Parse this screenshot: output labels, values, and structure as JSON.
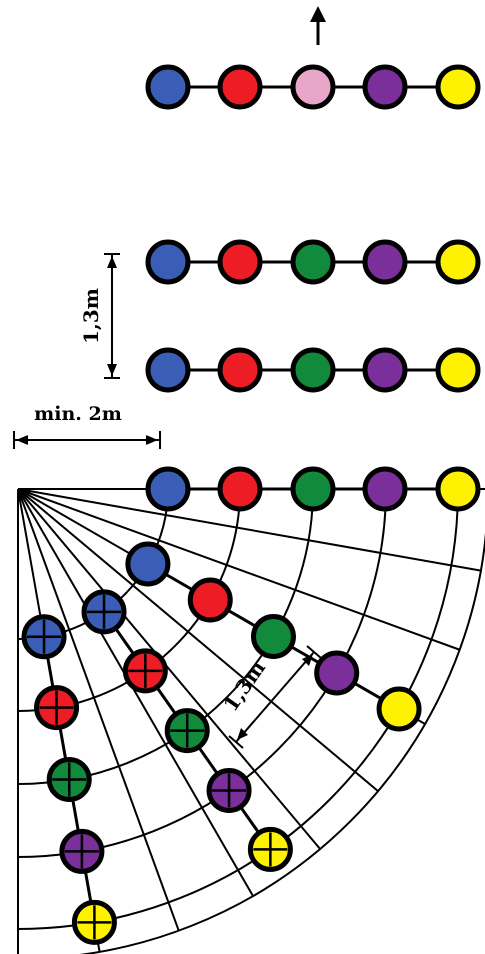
{
  "labels": {
    "spacing_row": "1,3m",
    "min_distance": "min. 2m",
    "spacing_diag": "1,3m"
  },
  "colors": {
    "blue": "#3a5db5",
    "red": "#ee1c25",
    "pink": "#e8a7c8",
    "green": "#128a3c",
    "purple": "#7a2f9a",
    "yellow": "#fff200",
    "line": "#000000"
  },
  "rows": [
    {
      "name": "moving-row",
      "colors": [
        "blue",
        "red",
        "pink",
        "purple",
        "yellow"
      ],
      "direction": "up"
    },
    {
      "name": "row-2",
      "colors": [
        "blue",
        "red",
        "green",
        "purple",
        "yellow"
      ]
    },
    {
      "name": "row-3",
      "colors": [
        "blue",
        "red",
        "green",
        "purple",
        "yellow"
      ]
    },
    {
      "name": "pivot-row",
      "colors": [
        "blue",
        "red",
        "green",
        "purple",
        "yellow"
      ]
    }
  ],
  "fan_arms": [
    {
      "name": "arm-1",
      "colors": [
        "blue",
        "red",
        "green",
        "purple",
        "yellow"
      ],
      "crossed": [
        false,
        false,
        false,
        false,
        false
      ]
    },
    {
      "name": "arm-2",
      "colors": [
        "blue",
        "red",
        "green",
        "purple",
        "yellow"
      ],
      "crossed": [
        true,
        true,
        true,
        true,
        true
      ]
    },
    {
      "name": "arm-3",
      "colors": [
        "blue",
        "red",
        "green",
        "purple",
        "yellow"
      ],
      "crossed": [
        true,
        true,
        true,
        true,
        true
      ]
    }
  ]
}
